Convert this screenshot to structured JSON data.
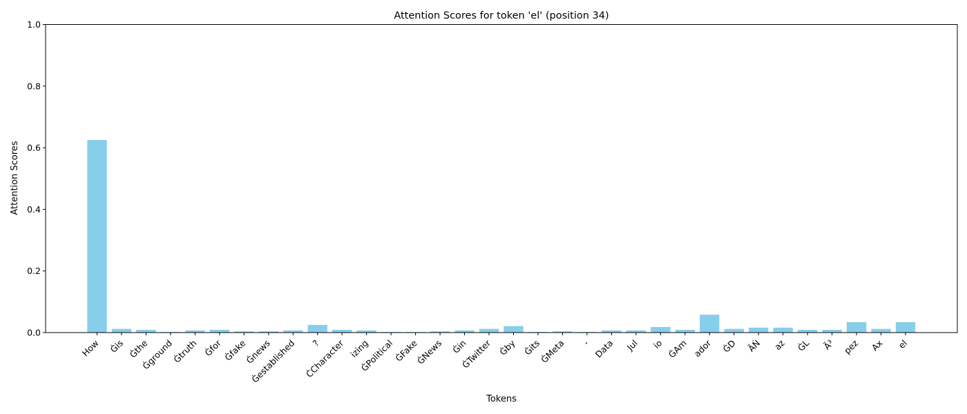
{
  "chart_data": {
    "type": "bar",
    "title": "Attention Scores for token 'el' (position 34)",
    "xlabel": "Tokens",
    "ylabel": "Attention Scores",
    "ylim": [
      0,
      1.0
    ],
    "yticks": [
      0.0,
      0.2,
      0.4,
      0.6,
      0.8,
      1.0
    ],
    "ytick_labels": [
      "0.0",
      "0.2",
      "0.4",
      "0.6",
      "0.8",
      "1.0"
    ],
    "bar_color": "#87ceeb",
    "grid": false,
    "categories": [
      "How",
      "Ġis",
      "Ġthe",
      "Ġground",
      "Ġtruth",
      "Ġfor",
      "Ġfake",
      "Ġnews",
      "Ġestablished",
      "?",
      "ĊCharacter",
      "izing",
      "ĠPolitical",
      "ĠFake",
      "ĠNews",
      "Ġin",
      "ĠTwitter",
      "Ġby",
      "Ġits",
      "ĠMeta",
      "-",
      "Data",
      "Jul",
      "io",
      "ĠAm",
      "ador",
      "ĠD",
      "ÃŃ",
      "az",
      "ĠL",
      "Ã³",
      "pez",
      "Ax",
      "el"
    ],
    "values": [
      0.625,
      0.012,
      0.009,
      0.002,
      0.007,
      0.009,
      0.004,
      0.004,
      0.007,
      0.025,
      0.009,
      0.007,
      0.002,
      0.002,
      0.004,
      0.007,
      0.012,
      0.021,
      0.002,
      0.004,
      0.002,
      0.007,
      0.007,
      0.018,
      0.009,
      0.058,
      0.012,
      0.016,
      0.016,
      0.009,
      0.009,
      0.034,
      0.012,
      0.034
    ]
  }
}
